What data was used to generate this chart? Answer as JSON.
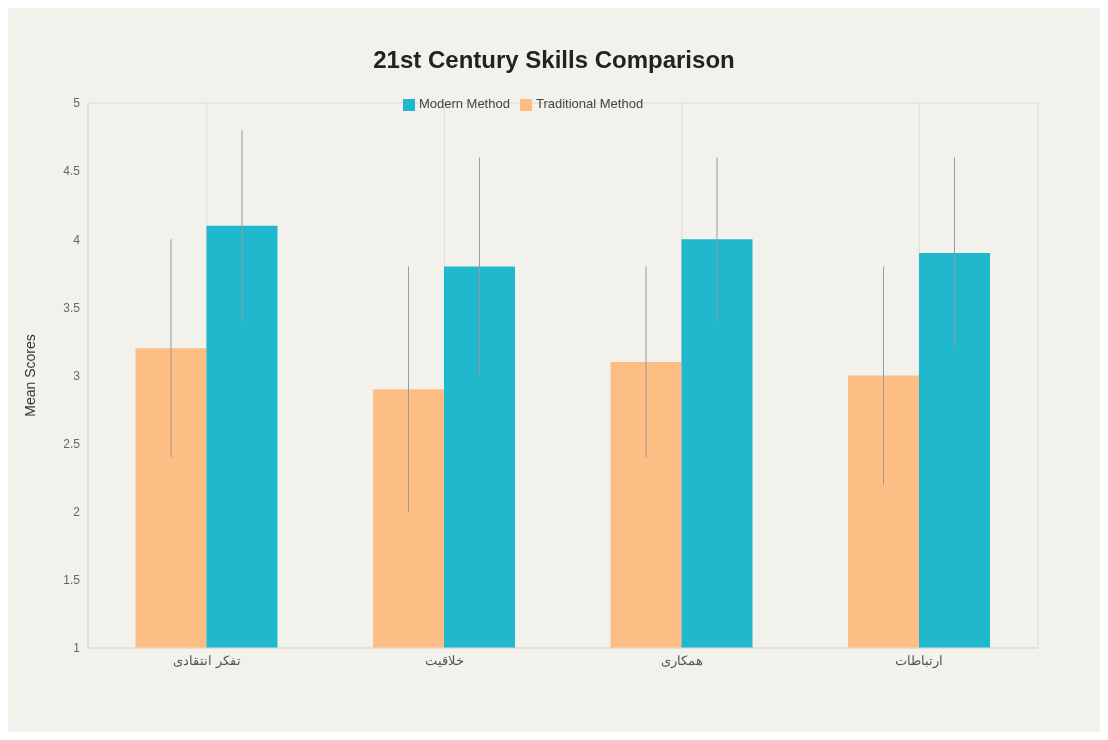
{
  "chart_data": {
    "type": "bar",
    "title": "21st Century Skills Comparison",
    "ylabel": "Mean Scores",
    "categories": [
      "تفکر انتقادی",
      "خلاقیت",
      "همکاری",
      "ارتباطات"
    ],
    "series": [
      {
        "name": "Traditional Method",
        "color": "#fdbe85",
        "values": [
          3.2,
          2.9,
          3.1,
          3.0
        ],
        "errors": [
          0.8,
          0.9,
          0.7,
          0.8
        ]
      },
      {
        "name": "Modern Method",
        "color": "#1fb8cd",
        "values": [
          4.1,
          3.8,
          4.0,
          3.9
        ],
        "errors": [
          0.7,
          0.8,
          0.6,
          0.7
        ]
      }
    ],
    "ylim": [
      1,
      5
    ],
    "yticks": [
      1,
      1.5,
      2,
      2.5,
      3,
      3.5,
      4,
      4.5,
      5
    ],
    "grid": true,
    "legend": "top"
  }
}
